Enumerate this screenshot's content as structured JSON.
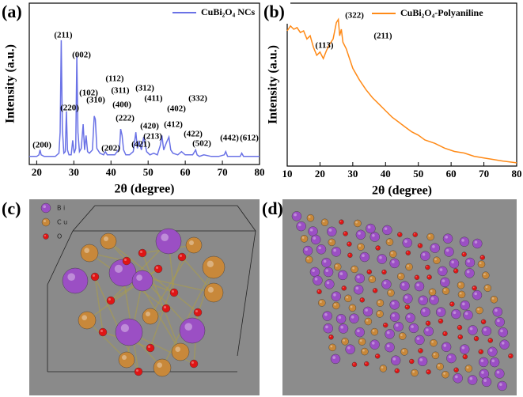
{
  "chart_data": [
    {
      "type": "line",
      "panel_label": "(a)",
      "xlabel": "2θ (degree)",
      "ylabel": "Intensity (a.u.)",
      "xlim": [
        18,
        80
      ],
      "xticks": [
        20,
        30,
        40,
        50,
        60,
        70,
        80
      ],
      "ylim": [
        0,
        100
      ],
      "x": [
        18,
        19,
        20,
        20.6,
        20.9,
        21.2,
        22,
        23,
        24,
        25,
        26,
        26.3,
        26.6,
        26.9,
        27.3,
        27.7,
        28,
        28.3,
        28.7,
        29.3,
        29.7,
        30.1,
        30.5,
        30.8,
        31.1,
        31.5,
        32,
        32.5,
        32.9,
        33.3,
        33.7,
        34.2,
        35,
        35.5,
        35.8,
        36.2,
        37,
        38,
        38.5,
        39,
        40,
        41,
        42.3,
        42.6,
        43,
        43.4,
        44,
        45,
        46,
        46.7,
        47.1,
        47.6,
        48.2,
        48.8,
        49.6,
        50.5,
        51.5,
        52.5,
        53.3,
        53.7,
        54.2,
        55,
        55.6,
        56.1,
        56.7,
        58,
        59,
        60,
        61,
        62,
        62.8,
        63.2,
        63.8,
        65,
        67,
        69,
        70.5,
        70.9,
        71.4,
        73,
        74.8,
        75.2,
        75.7,
        77,
        78.5,
        80
      ],
      "series": [
        {
          "name": "CuBi₂O₄ NCs",
          "color": "#6a72e6",
          "values": [
            5,
            5,
            5,
            6,
            9,
            6,
            5,
            5,
            5,
            5,
            7,
            20,
            77,
            22,
            7,
            8,
            33,
            9,
            6,
            6,
            15,
            7,
            10,
            67,
            20,
            8,
            10,
            25,
            9,
            18,
            8,
            7,
            9,
            30,
            28,
            10,
            7,
            6,
            8,
            6,
            6,
            6,
            10,
            22,
            18,
            9,
            6,
            6,
            8,
            20,
            10,
            14,
            9,
            17,
            8,
            6,
            7,
            6,
            12,
            18,
            9,
            14,
            17,
            9,
            7,
            6,
            8,
            6,
            6,
            6,
            9,
            6,
            5,
            6,
            5,
            5,
            6,
            8,
            5,
            5,
            5,
            7,
            5,
            5,
            5,
            5
          ]
        }
      ],
      "annotations": [
        "(211)",
        "(002)",
        "(220)",
        "(102)",
        "(310)",
        "(112)",
        "(311)",
        "(400)",
        "(222)",
        "(312)",
        "(411)",
        "(202)",
        "(420)",
        "(213)",
        "(421)",
        "(402)",
        "(412)",
        "(332)",
        "(422)",
        "(502)",
        "(442)",
        "(612)",
        "(200)"
      ]
    },
    {
      "type": "line",
      "panel_label": "(b)",
      "xlabel": "2θ (degree)",
      "ylabel": "Intensity (a.u.)",
      "xlim": [
        10,
        80
      ],
      "xticks": [
        10,
        20,
        30,
        40,
        50,
        60,
        70,
        80
      ],
      "ylim": [
        0,
        100
      ],
      "x": [
        10,
        11,
        12,
        13,
        14,
        15,
        16,
        17,
        18,
        19,
        20,
        21,
        22,
        23,
        24,
        25,
        25.6,
        26,
        26.5,
        27,
        28,
        29,
        30,
        32,
        34,
        36,
        38,
        40,
        42,
        44,
        46,
        48,
        50,
        52,
        55,
        58,
        61,
        64,
        67,
        70,
        73,
        76,
        80
      ],
      "series": [
        {
          "name": "CuBi₂O₄-Polyaniline",
          "color": "#ff8a17",
          "values": [
            83,
            86,
            84,
            85,
            82,
            83,
            78,
            80,
            73,
            68,
            70,
            66,
            71,
            75,
            78,
            88,
            90,
            80,
            84,
            76,
            72,
            66,
            60,
            53,
            47,
            42,
            38,
            34,
            30,
            27,
            24,
            21,
            19,
            16,
            14,
            11,
            9,
            8,
            6,
            5,
            4,
            3,
            2
          ]
        }
      ],
      "annotations": [
        "(113)",
        "(322)",
        "(211)"
      ]
    }
  ],
  "images": [
    {
      "label": "(c)",
      "legend": [
        "B i",
        "C u",
        "O"
      ]
    },
    {
      "label": "(d)"
    }
  ]
}
